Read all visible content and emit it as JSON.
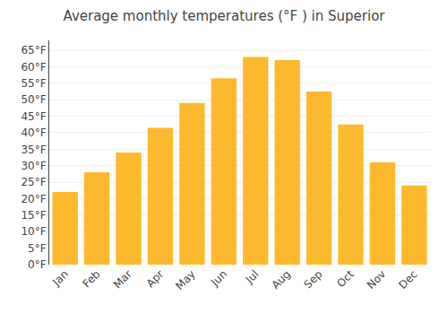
{
  "chart_data": {
    "type": "bar",
    "title": "Average monthly temperatures (°F ) in Superior",
    "categories": [
      "Jan",
      "Feb",
      "Mar",
      "Apr",
      "May",
      "Jun",
      "Jul",
      "Aug",
      "Sep",
      "Oct",
      "Nov",
      "Dec"
    ],
    "values": [
      22,
      28,
      34,
      41.5,
      49,
      56.5,
      63,
      62,
      52.5,
      42.5,
      31,
      24
    ],
    "color": "#FDB92E",
    "ylim": [
      0,
      68
    ],
    "yticks": [
      {
        "value": 0,
        "label": "0°F"
      },
      {
        "value": 5,
        "label": "5°F"
      },
      {
        "value": 10,
        "label": "10°F"
      },
      {
        "value": 15,
        "label": "15°F"
      },
      {
        "value": 20,
        "label": "20°F"
      },
      {
        "value": 25,
        "label": "25°F"
      },
      {
        "value": 30,
        "label": "30°F"
      },
      {
        "value": 35,
        "label": "35°F"
      },
      {
        "value": 40,
        "label": "40°F"
      },
      {
        "value": 45,
        "label": "45°F"
      },
      {
        "value": 50,
        "label": "50°F"
      },
      {
        "value": 55,
        "label": "55°F"
      },
      {
        "value": 60,
        "label": "60°F"
      },
      {
        "value": 65,
        "label": "65°F"
      }
    ],
    "grid": true
  }
}
